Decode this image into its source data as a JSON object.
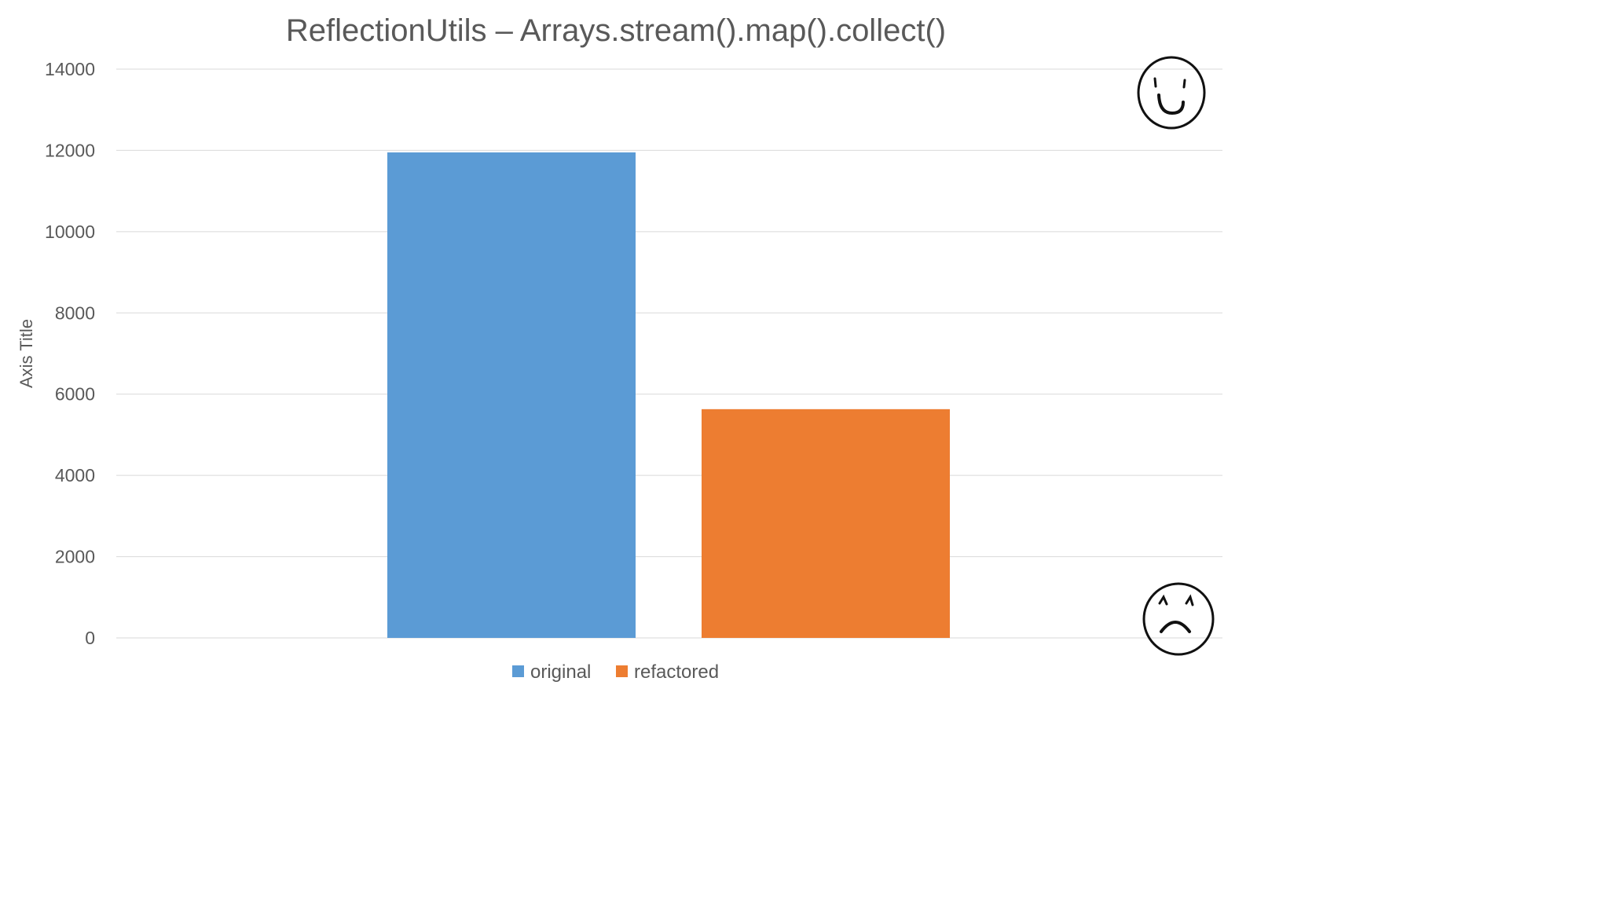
{
  "chart_data": {
    "type": "bar",
    "title": "ReflectionUtils – Arrays.stream().map().collect()",
    "xlabel": "",
    "ylabel": "Axis Title",
    "ylim": [
      0,
      14000
    ],
    "yticks": [
      0,
      2000,
      4000,
      6000,
      8000,
      10000,
      12000,
      14000
    ],
    "grid": true,
    "legend_position": "bottom",
    "series": [
      {
        "name": "original",
        "values": [
          11950
        ],
        "color": "#5b9bd5"
      },
      {
        "name": "refactored",
        "values": [
          5630
        ],
        "color": "#ed7d31"
      }
    ],
    "decorations": {
      "top_right": "smiley-face-icon",
      "bottom_right": "frowny-face-icon"
    }
  }
}
